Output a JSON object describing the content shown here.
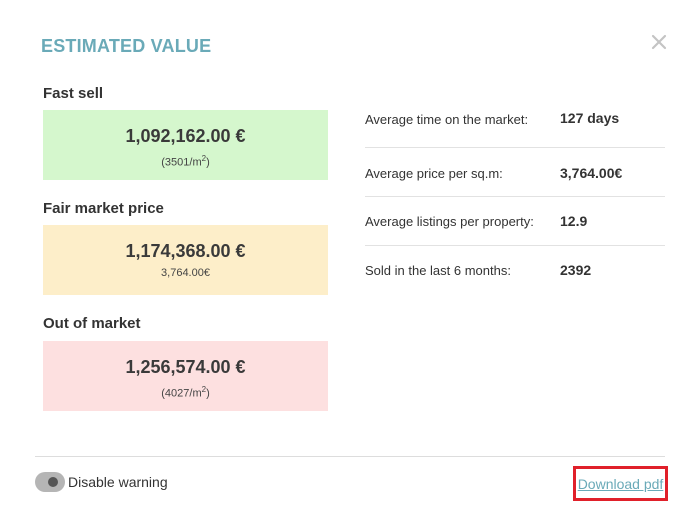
{
  "modal": {
    "title": "ESTIMATED VALUE"
  },
  "prices": [
    {
      "label": "Fast sell",
      "amount": "1,092,162.00 €",
      "sub": "(3501/m",
      "sup": "2",
      "sub_end": ")"
    },
    {
      "label": "Fair market price",
      "amount": "1,174,368.00 €",
      "sub": "3,764.00€",
      "sup": "",
      "sub_end": ""
    },
    {
      "label": "Out of market",
      "amount": "1,256,574.00 €",
      "sub": "(4027/m",
      "sup": "2",
      "sub_end": ")"
    }
  ],
  "stats": [
    {
      "label": "Average time on the market:",
      "value": "127 days"
    },
    {
      "label": "Average price per sq.m:",
      "value": "3,764.00€"
    },
    {
      "label": "Average listings per property:",
      "value": "12.9"
    },
    {
      "label": "Sold in the last 6 months:",
      "value": "2392"
    }
  ],
  "footer": {
    "toggle_label": "Disable warning",
    "download_label": "Download pdf"
  },
  "colors": {
    "title": "#6aaab8",
    "fast_sell_bg": "#d5f7cd",
    "fair_market_bg": "#fdeec9",
    "out_of_market_bg": "#fde0e0",
    "highlight_border": "#e0202a"
  },
  "icons": {
    "close": "close-icon"
  }
}
